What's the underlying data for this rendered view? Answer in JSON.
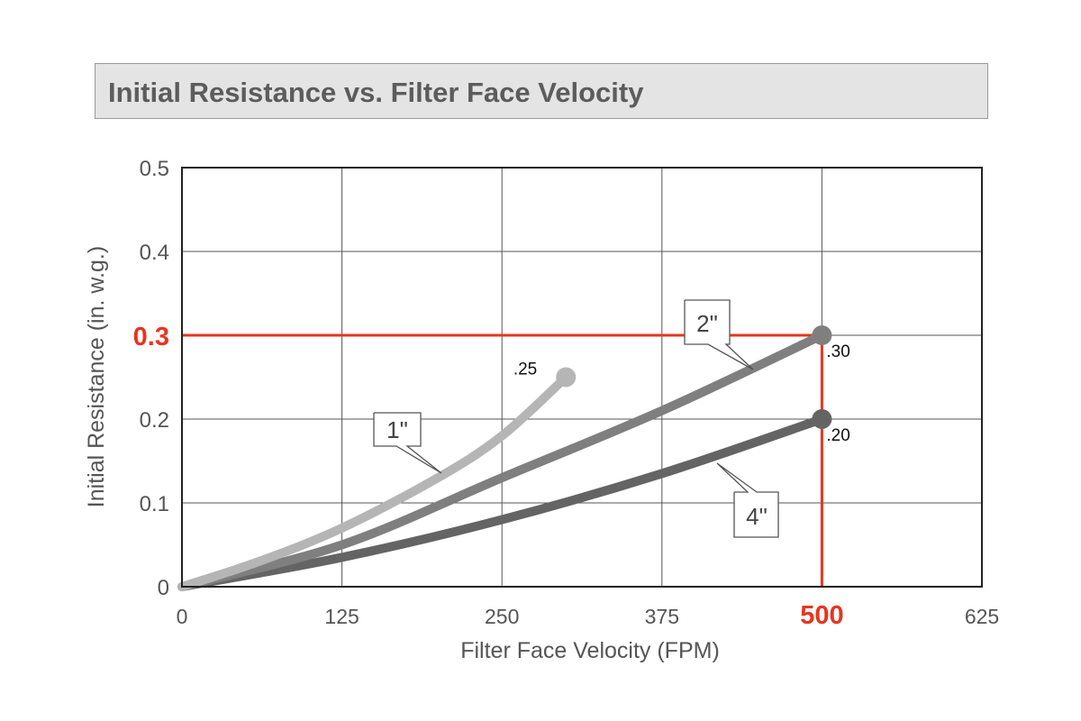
{
  "chart_data": {
    "type": "line",
    "title": "Initial Resistance vs. Filter Face Velocity",
    "xlabel": "Filter Face Velocity (FPM)",
    "ylabel": "Initial Resistance (in. w.g.)",
    "xlim": [
      0,
      625
    ],
    "ylim": [
      0,
      0.5
    ],
    "xticks": [
      "0",
      "125",
      "250",
      "375",
      "500",
      "625"
    ],
    "yticks": [
      "0",
      "0.1",
      "0.2",
      "0.3",
      "0.4",
      "0.5"
    ],
    "grid": true,
    "series": [
      {
        "name": "1\"",
        "color": "#b5b5b5",
        "x": [
          0,
          60,
          125,
          200,
          250,
          300
        ],
        "y": [
          0,
          0.03,
          0.07,
          0.13,
          0.18,
          0.25
        ],
        "end_label": ".25"
      },
      {
        "name": "2\"",
        "color": "#7f7f7f",
        "x": [
          0,
          125,
          250,
          375,
          500
        ],
        "y": [
          0,
          0.05,
          0.13,
          0.21,
          0.3
        ],
        "end_label": ".30"
      },
      {
        "name": "4\"",
        "color": "#646464",
        "x": [
          0,
          125,
          250,
          375,
          500
        ],
        "y": [
          0,
          0.035,
          0.08,
          0.135,
          0.2
        ],
        "end_label": ".20"
      }
    ],
    "reference_lines": {
      "color": "#e8351f",
      "x": 500,
      "y": 0.3,
      "x_label": "500",
      "y_label": "0.3"
    }
  }
}
